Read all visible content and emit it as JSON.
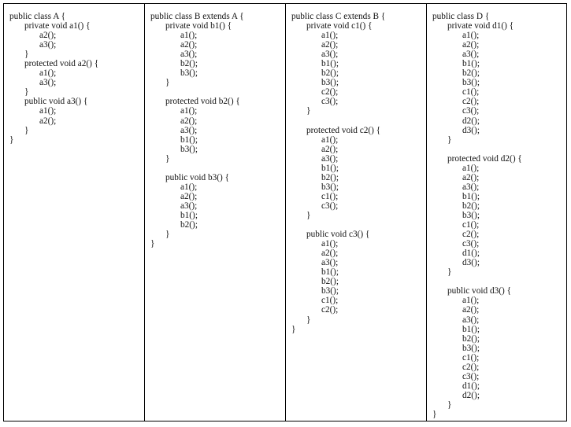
{
  "columns": [
    {
      "lines": [
        {
          "indent": 0,
          "text": "public class A {"
        },
        {
          "indent": 1,
          "text": "private void a1() {"
        },
        {
          "indent": 2,
          "text": "a2();"
        },
        {
          "indent": 2,
          "text": "a3();"
        },
        {
          "indent": 1,
          "text": "}"
        },
        {
          "indent": 1,
          "text": "protected void a2() {"
        },
        {
          "indent": 2,
          "text": "a1();"
        },
        {
          "indent": 2,
          "text": "a3();"
        },
        {
          "indent": 1,
          "text": "}"
        },
        {
          "indent": 1,
          "text": "public void a3() {"
        },
        {
          "indent": 2,
          "text": "a1();"
        },
        {
          "indent": 2,
          "text": "a2();"
        },
        {
          "indent": 1,
          "text": "}"
        },
        {
          "indent": 0,
          "text": "}"
        }
      ]
    },
    {
      "lines": [
        {
          "indent": 0,
          "text": "public class B extends A {"
        },
        {
          "indent": 1,
          "text": "private void b1() {"
        },
        {
          "indent": 2,
          "text": "a1();"
        },
        {
          "indent": 2,
          "text": "a2();"
        },
        {
          "indent": 2,
          "text": "a3();"
        },
        {
          "indent": 2,
          "text": "b2();"
        },
        {
          "indent": 2,
          "text": "b3();"
        },
        {
          "indent": 1,
          "text": "}"
        },
        {
          "indent": 0,
          "text": ""
        },
        {
          "indent": 1,
          "text": "protected void b2() {"
        },
        {
          "indent": 2,
          "text": "a1();"
        },
        {
          "indent": 2,
          "text": "a2();"
        },
        {
          "indent": 2,
          "text": "a3();"
        },
        {
          "indent": 2,
          "text": "b1();"
        },
        {
          "indent": 2,
          "text": "b3();"
        },
        {
          "indent": 1,
          "text": "}"
        },
        {
          "indent": 0,
          "text": ""
        },
        {
          "indent": 1,
          "text": "public void b3() {"
        },
        {
          "indent": 2,
          "text": "a1();"
        },
        {
          "indent": 2,
          "text": "a2();"
        },
        {
          "indent": 2,
          "text": "a3();"
        },
        {
          "indent": 2,
          "text": "b1();"
        },
        {
          "indent": 2,
          "text": "b2();"
        },
        {
          "indent": 1,
          "text": "}"
        },
        {
          "indent": 0,
          "text": "}"
        }
      ]
    },
    {
      "lines": [
        {
          "indent": 0,
          "text": "public class C extends B {"
        },
        {
          "indent": 1,
          "text": "private void c1() {"
        },
        {
          "indent": 2,
          "text": "a1();"
        },
        {
          "indent": 2,
          "text": "a2();"
        },
        {
          "indent": 2,
          "text": "a3();"
        },
        {
          "indent": 2,
          "text": "b1();"
        },
        {
          "indent": 2,
          "text": "b2();"
        },
        {
          "indent": 2,
          "text": "b3();"
        },
        {
          "indent": 2,
          "text": "c2();"
        },
        {
          "indent": 2,
          "text": "c3();"
        },
        {
          "indent": 1,
          "text": "}"
        },
        {
          "indent": 0,
          "text": ""
        },
        {
          "indent": 1,
          "text": "protected void c2() {"
        },
        {
          "indent": 2,
          "text": "a1();"
        },
        {
          "indent": 2,
          "text": "a2();"
        },
        {
          "indent": 2,
          "text": "a3();"
        },
        {
          "indent": 2,
          "text": "b1();"
        },
        {
          "indent": 2,
          "text": "b2();"
        },
        {
          "indent": 2,
          "text": "b3();"
        },
        {
          "indent": 2,
          "text": "c1();"
        },
        {
          "indent": 2,
          "text": "c3();"
        },
        {
          "indent": 1,
          "text": "}"
        },
        {
          "indent": 0,
          "text": ""
        },
        {
          "indent": 1,
          "text": "public void c3() {"
        },
        {
          "indent": 2,
          "text": "a1();"
        },
        {
          "indent": 2,
          "text": "a2();"
        },
        {
          "indent": 2,
          "text": "a3();"
        },
        {
          "indent": 2,
          "text": "b1();"
        },
        {
          "indent": 2,
          "text": "b2();"
        },
        {
          "indent": 2,
          "text": "b3();"
        },
        {
          "indent": 2,
          "text": "c1();"
        },
        {
          "indent": 2,
          "text": "c2();"
        },
        {
          "indent": 1,
          "text": "}"
        },
        {
          "indent": 0,
          "text": "}"
        }
      ]
    },
    {
      "lines": [
        {
          "indent": 0,
          "text": "public class D {"
        },
        {
          "indent": 1,
          "text": "private void d1() {"
        },
        {
          "indent": 2,
          "text": "a1();"
        },
        {
          "indent": 2,
          "text": "a2();"
        },
        {
          "indent": 2,
          "text": "a3();"
        },
        {
          "indent": 2,
          "text": "b1();"
        },
        {
          "indent": 2,
          "text": "b2();"
        },
        {
          "indent": 2,
          "text": "b3();"
        },
        {
          "indent": 2,
          "text": "c1();"
        },
        {
          "indent": 2,
          "text": "c2();"
        },
        {
          "indent": 2,
          "text": "c3();"
        },
        {
          "indent": 2,
          "text": "d2();"
        },
        {
          "indent": 2,
          "text": "d3();"
        },
        {
          "indent": 1,
          "text": "}"
        },
        {
          "indent": 0,
          "text": ""
        },
        {
          "indent": 1,
          "text": "protected void d2() {"
        },
        {
          "indent": 2,
          "text": "a1();"
        },
        {
          "indent": 2,
          "text": "a2();"
        },
        {
          "indent": 2,
          "text": "a3();"
        },
        {
          "indent": 2,
          "text": "b1();"
        },
        {
          "indent": 2,
          "text": "b2();"
        },
        {
          "indent": 2,
          "text": "b3();"
        },
        {
          "indent": 2,
          "text": "c1();"
        },
        {
          "indent": 2,
          "text": "c2();"
        },
        {
          "indent": 2,
          "text": "c3();"
        },
        {
          "indent": 2,
          "text": "d1();"
        },
        {
          "indent": 2,
          "text": "d3();"
        },
        {
          "indent": 1,
          "text": "}"
        },
        {
          "indent": 0,
          "text": ""
        },
        {
          "indent": 1,
          "text": "public void d3() {"
        },
        {
          "indent": 2,
          "text": "a1();"
        },
        {
          "indent": 2,
          "text": "a2();"
        },
        {
          "indent": 2,
          "text": "a3();"
        },
        {
          "indent": 2,
          "text": "b1();"
        },
        {
          "indent": 2,
          "text": "b2();"
        },
        {
          "indent": 2,
          "text": "b3();"
        },
        {
          "indent": 2,
          "text": "c1();"
        },
        {
          "indent": 2,
          "text": "c2();"
        },
        {
          "indent": 2,
          "text": "c3();"
        },
        {
          "indent": 2,
          "text": "d1();"
        },
        {
          "indent": 2,
          "text": "d2();"
        },
        {
          "indent": 1,
          "text": "}"
        },
        {
          "indent": 0,
          "text": "}"
        }
      ]
    }
  ]
}
